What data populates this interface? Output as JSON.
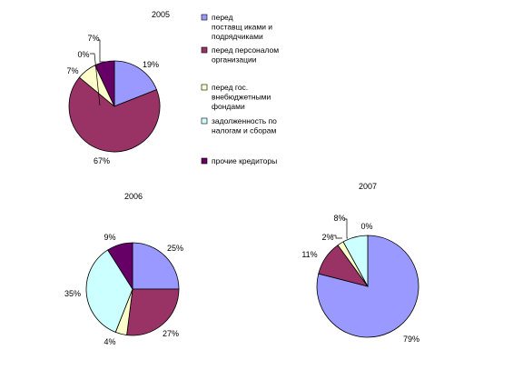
{
  "legend": {
    "items": [
      {
        "lines": [
          "перед",
          "поставщ иками и",
          "подрядчиками"
        ],
        "color": "#9999ff"
      },
      {
        "lines": [
          "перед персоналом",
          "организации"
        ],
        "color": "#993366"
      },
      {
        "lines": [
          "перед гос.",
          "внебюджетными",
          "фондами"
        ],
        "color": "#ffffcc"
      },
      {
        "lines": [
          "задолженность по",
          "налогам и сборам"
        ],
        "color": "#ccffff"
      },
      {
        "lines": [
          "прочие кредиторы"
        ],
        "color": "#660066"
      }
    ]
  },
  "chart_data": [
    {
      "type": "pie",
      "title": "2005",
      "categories": [
        "перед поставщ иками и подрядчиками",
        "перед персоналом организации",
        "перед гос. внебюджетными фондами",
        "задолженность по налогам и сборам",
        "прочие кредиторы"
      ],
      "values": [
        19,
        67,
        7,
        0,
        7
      ],
      "labels": [
        "19%",
        "67%",
        "7%",
        "0%",
        "7%"
      ]
    },
    {
      "type": "pie",
      "title": "2006",
      "categories": [
        "перед поставщ иками и подрядчиками",
        "перед персоналом организации",
        "перед гос. внебюджетными фондами",
        "задолженность по налогам и сборам",
        "прочие кредиторы"
      ],
      "values": [
        25,
        27,
        4,
        35,
        9
      ],
      "labels": [
        "25%",
        "27%",
        "4%",
        "35%",
        "9%"
      ]
    },
    {
      "type": "pie",
      "title": "2007",
      "categories": [
        "перед поставщ иками и подрядчиками",
        "перед персоналом организации",
        "перед гос. внебюджетными фондами",
        "задолженность по налогам и сборам",
        "прочие кредиторы"
      ],
      "values": [
        79,
        11,
        2,
        8,
        0
      ],
      "labels": [
        "79%",
        "11%",
        "2%",
        "8%",
        "0%"
      ]
    }
  ]
}
